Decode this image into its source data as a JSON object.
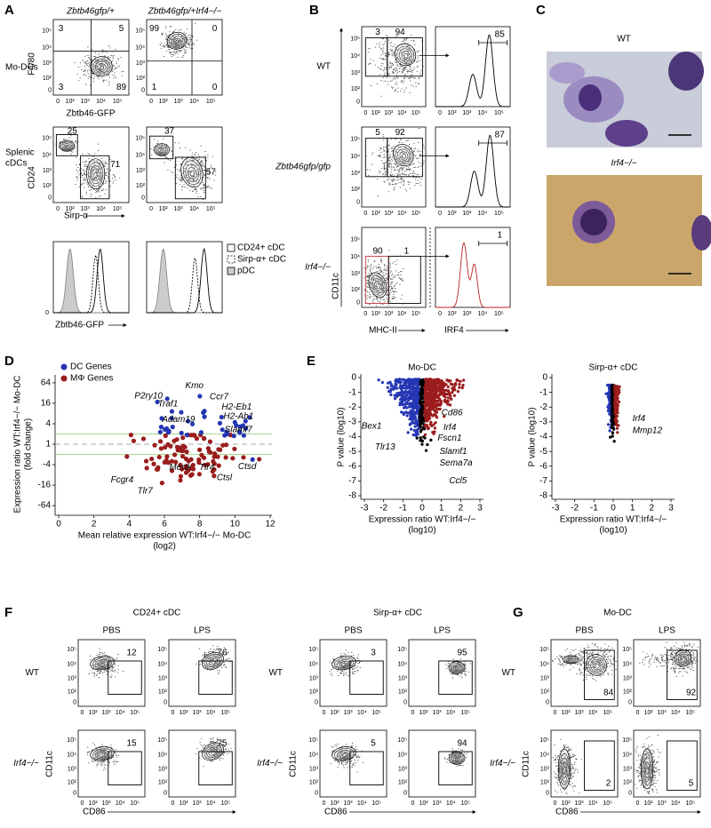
{
  "flow_ticks": [
    "0",
    "10²",
    "10³",
    "10⁴",
    "10⁵"
  ],
  "panels": {
    "A": {
      "letter": "A",
      "columns": [
        "Zbtb46gfp/+",
        "Zbtb46gfp/+Irf4−/−"
      ],
      "mo_dc": {
        "row_label": "Mo-DCs",
        "y_axis": "F4/80",
        "x_axis": "Zbtb46-GFP",
        "quadrants": [
          [
            3,
            5,
            3,
            89
          ],
          [
            99,
            0,
            1,
            0
          ]
        ]
      },
      "splenic": {
        "row_label": [
          "Splenic",
          "cDCs"
        ],
        "y_axis": "CD24",
        "x_axis": "Sirp-α",
        "gates": [
          [
            25,
            71
          ],
          [
            37,
            57
          ]
        ]
      },
      "histogram": {
        "y_tick": 0,
        "x_axis": "Zbtb46-GFP",
        "legend": [
          "CD24+ cDC",
          "Sirp-α+ cDC",
          "pDC"
        ]
      }
    },
    "B": {
      "letter": "B",
      "rows": [
        {
          "label": "WT",
          "gates": [
            3,
            94
          ],
          "irf4_gate": 85
        },
        {
          "label": "Zbtb46gfp/gfp",
          "gates": [
            5,
            92
          ],
          "irf4_gate": 87
        },
        {
          "label": "Irf4−/−",
          "gates": [
            90,
            1
          ],
          "irf4_gate": 1
        }
      ],
      "y_axis": "CD11c",
      "x_axis": "MHC-II",
      "hist_axis": "IRF4"
    },
    "C": {
      "letter": "C",
      "images": [
        "WT",
        "Irf4−/−"
      ]
    },
    "D": {
      "letter": "D",
      "legend": [
        "DC Genes",
        "MΦ Genes"
      ],
      "y_axis": [
        "Expression ratio WT:Irf4−/− Mo-DC",
        "(fold change)"
      ],
      "x_axis": [
        "Mean relative expression WT:Irf4−/− Mo-DC",
        "(log2)"
      ],
      "yticks": [
        64,
        16,
        4,
        1,
        -4,
        -16,
        -64
      ],
      "xticks": [
        0,
        2,
        4,
        6,
        8,
        10,
        12
      ],
      "genes": [
        "P2ry10",
        "Kmo",
        "Traf1",
        "Ccr7",
        "H2-Eb1",
        "Adam19",
        "H2-Ab1",
        "Slamf7",
        "Fcgr4",
        "Mertk",
        "Tlr4",
        "Ctsd",
        "Ctsl",
        "Tlr7"
      ]
    },
    "E": {
      "letter": "E",
      "titles": [
        "Mo-DC",
        "Sirp-α+ cDC"
      ],
      "y_axis": "P value (log10)",
      "x_axis": [
        "Expression ratio WT:Irf4−/−",
        "(log10)"
      ],
      "yticks": [
        0,
        -1,
        -2,
        -3,
        -4,
        -5,
        -6,
        -7,
        -8
      ],
      "xticks": [
        -3,
        -2,
        -1,
        0,
        1,
        2,
        3
      ],
      "mo_dc_genes": [
        "Bex1",
        "Tlr13",
        "Cd86",
        "Irf4",
        "Fscn1",
        "Slamf1",
        "Sema7a",
        "Ccl5"
      ],
      "sirp_genes": [
        "Irf4",
        "Mmp12"
      ]
    },
    "F": {
      "letter": "F",
      "groups": [
        {
          "title": "CD24+ cDC",
          "values": [
            [
              12,
              76
            ],
            [
              15,
              75
            ]
          ]
        },
        {
          "title": "Sirp-α+ cDC",
          "values": [
            [
              3,
              95
            ],
            [
              5,
              94
            ]
          ]
        }
      ],
      "conditions": [
        "PBS",
        "LPS"
      ],
      "rows": [
        "WT",
        "Irf4−/−"
      ],
      "y_axis": "CD11c",
      "x_axis": "CD86"
    },
    "G": {
      "letter": "G",
      "title": "Mo-DC",
      "values": [
        [
          84,
          92
        ],
        [
          2,
          5
        ]
      ],
      "conditions": [
        "PBS",
        "LPS"
      ],
      "rows": [
        "WT",
        "Irf4−/−"
      ],
      "y_axis": "CD11c",
      "x_axis": "CD86"
    }
  }
}
